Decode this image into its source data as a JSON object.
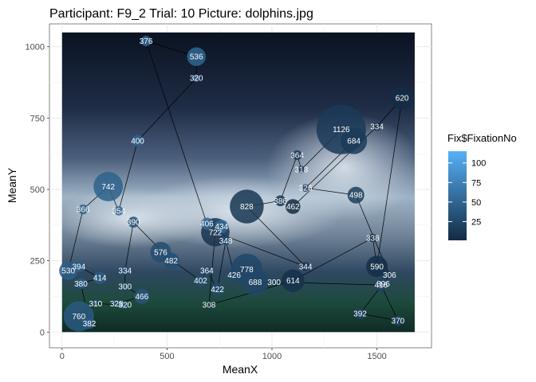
{
  "chart_data": {
    "type": "scatter",
    "title": "Participant: F9_2 Trial: 10 Picture: dolphins.jpg",
    "xlabel": "MeanX",
    "ylabel": "MeanY",
    "xlim": [
      -60,
      1760
    ],
    "ylim": [
      -55,
      1080
    ],
    "xticks": [
      0,
      500,
      1000,
      1500
    ],
    "yticks": [
      0,
      250,
      500,
      750,
      1000
    ],
    "grid": true,
    "background_image": "dolphins.jpg",
    "background_extent": {
      "x": [
        0,
        1680
      ],
      "y": [
        0,
        1050
      ]
    },
    "legend": {
      "title": "Fix$FixationNo",
      "position": "right",
      "ticks": [
        25,
        50,
        75,
        100
      ],
      "range": [
        1,
        115
      ],
      "colors": {
        "low": "#132B43",
        "high": "#56B1F7"
      }
    },
    "point_label_field": "duration",
    "size_field": "duration",
    "color_field": "fixation_no",
    "scanpath": "lines connect fixations in fixation order",
    "fixations": [
      {
        "fixation_no": 1,
        "x": 1100,
        "y": 440,
        "duration": 462
      },
      {
        "fixation_no": 2,
        "x": 1500,
        "y": 720,
        "duration": 334
      },
      {
        "fixation_no": 3,
        "x": 1620,
        "y": 820,
        "duration": 620
      },
      {
        "fixation_no": 4,
        "x": 1500,
        "y": 230,
        "duration": 590
      },
      {
        "fixation_no": 5,
        "x": 1480,
        "y": 330,
        "duration": 338
      },
      {
        "fixation_no": 6,
        "x": 1100,
        "y": 180,
        "duration": 614
      },
      {
        "fixation_no": 7,
        "x": 700,
        "y": 95,
        "duration": 308
      },
      {
        "fixation_no": 8,
        "x": 730,
        "y": 350,
        "duration": 722
      },
      {
        "fixation_no": 9,
        "x": 1160,
        "y": 230,
        "duration": 344
      },
      {
        "fixation_no": 10,
        "x": 880,
        "y": 440,
        "duration": 828
      },
      {
        "fixation_no": 11,
        "x": 1040,
        "y": 460,
        "duration": 386
      },
      {
        "fixation_no": 12,
        "x": 1120,
        "y": 620,
        "duration": 364
      },
      {
        "fixation_no": 13,
        "x": 1140,
        "y": 570,
        "duration": 318
      },
      {
        "fixation_no": 14,
        "x": 1330,
        "y": 710,
        "duration": 1126
      },
      {
        "fixation_no": 15,
        "x": 1390,
        "y": 670,
        "duration": 684
      },
      {
        "fixation_no": 16,
        "x": 1160,
        "y": 505,
        "duration": 326
      },
      {
        "fixation_no": 17,
        "x": 1400,
        "y": 480,
        "duration": 498
      },
      {
        "fixation_no": 18,
        "x": 1560,
        "y": 200,
        "duration": 306
      },
      {
        "fixation_no": 19,
        "x": 1530,
        "y": 170,
        "duration": 396
      },
      {
        "fixation_no": 20,
        "x": 1420,
        "y": 65,
        "duration": 392
      },
      {
        "fixation_no": 21,
        "x": 1600,
        "y": 40,
        "duration": 370
      },
      {
        "fixation_no": 22,
        "x": 1520,
        "y": 165,
        "duration": 416
      },
      {
        "fixation_no": 23,
        "x": 1010,
        "y": 175,
        "duration": 300
      },
      {
        "fixation_no": 24,
        "x": 920,
        "y": 175,
        "duration": 688
      },
      {
        "fixation_no": 25,
        "x": 880,
        "y": 220,
        "duration": 778
      },
      {
        "fixation_no": 26,
        "x": 820,
        "y": 200,
        "duration": 426
      },
      {
        "fixation_no": 27,
        "x": 780,
        "y": 320,
        "duration": 348
      },
      {
        "fixation_no": 28,
        "x": 740,
        "y": 150,
        "duration": 422
      },
      {
        "fixation_no": 29,
        "x": 690,
        "y": 215,
        "duration": 364
      },
      {
        "fixation_no": 30,
        "x": 660,
        "y": 180,
        "duration": 402
      },
      {
        "fixation_no": 31,
        "x": 470,
        "y": 280,
        "duration": 576
      },
      {
        "fixation_no": 32,
        "x": 520,
        "y": 250,
        "duration": 482
      },
      {
        "fixation_no": 33,
        "x": 340,
        "y": 385,
        "duration": 390
      },
      {
        "fixation_no": 34,
        "x": 300,
        "y": 215,
        "duration": 334
      },
      {
        "fixation_no": 35,
        "x": 300,
        "y": 160,
        "duration": 300
      },
      {
        "fixation_no": 36,
        "x": 380,
        "y": 125,
        "duration": 466
      },
      {
        "fixation_no": 37,
        "x": 260,
        "y": 100,
        "duration": 328
      },
      {
        "fixation_no": 38,
        "x": 300,
        "y": 95,
        "duration": 320
      },
      {
        "fixation_no": 39,
        "x": 160,
        "y": 100,
        "duration": 310
      },
      {
        "fixation_no": 40,
        "x": 80,
        "y": 55,
        "duration": 760
      },
      {
        "fixation_no": 41,
        "x": 130,
        "y": 30,
        "duration": 382
      },
      {
        "fixation_no": 42,
        "x": 90,
        "y": 170,
        "duration": 380
      },
      {
        "fixation_no": 43,
        "x": 180,
        "y": 190,
        "duration": 414
      },
      {
        "fixation_no": 44,
        "x": 80,
        "y": 230,
        "duration": 394
      },
      {
        "fixation_no": 45,
        "x": 30,
        "y": 215,
        "duration": 530
      },
      {
        "fixation_no": 46,
        "x": 100,
        "y": 430,
        "duration": 366
      },
      {
        "fixation_no": 47,
        "x": 220,
        "y": 510,
        "duration": 742
      },
      {
        "fixation_no": 48,
        "x": 270,
        "y": 425,
        "duration": 354
      },
      {
        "fixation_no": 49,
        "x": 360,
        "y": 670,
        "duration": 400
      },
      {
        "fixation_no": 50,
        "x": 640,
        "y": 890,
        "duration": 320
      },
      {
        "fixation_no": 51,
        "x": 640,
        "y": 965,
        "duration": 536
      },
      {
        "fixation_no": 52,
        "x": 400,
        "y": 1020,
        "duration": 376
      },
      {
        "fixation_no": 53,
        "x": 690,
        "y": 380,
        "duration": 406
      },
      {
        "fixation_no": 54,
        "x": 760,
        "y": 370,
        "duration": 434
      }
    ]
  }
}
